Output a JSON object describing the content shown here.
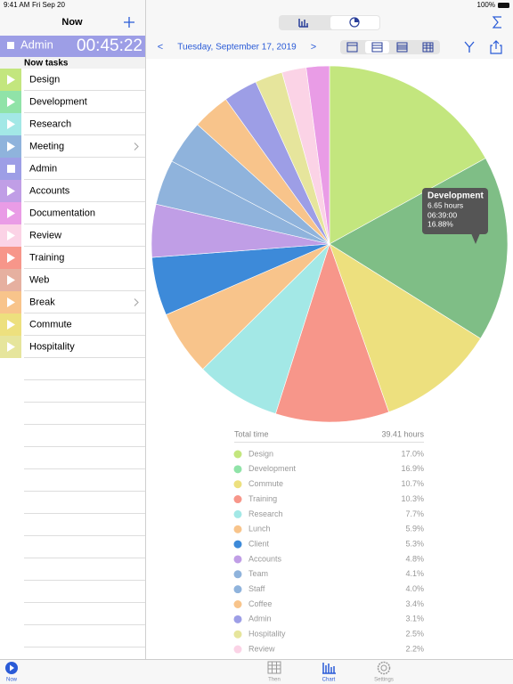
{
  "status_bar": {
    "time": "9:41 AM",
    "date": "Fri Sep 20",
    "battery": "100%"
  },
  "sidebar": {
    "title": "Now",
    "active": {
      "name": "Admin",
      "timer": "00:45:22",
      "color": "#9d9ee6"
    },
    "section": "Now tasks",
    "tasks": [
      {
        "name": "Design",
        "color": "#c3e67e",
        "icon": "play"
      },
      {
        "name": "Development",
        "color": "#90e3a8",
        "icon": "play"
      },
      {
        "name": "Research",
        "color": "#a3e8e6",
        "icon": "play"
      },
      {
        "name": "Meeting",
        "color": "#8fb3dc",
        "icon": "play",
        "has_children": true
      },
      {
        "name": "Admin",
        "color": "#9d9ee6",
        "icon": "stop"
      },
      {
        "name": "Accounts",
        "color": "#c09ee6",
        "icon": "play"
      },
      {
        "name": "Documentation",
        "color": "#e99ce6",
        "icon": "play"
      },
      {
        "name": "Review",
        "color": "#fbd3e6",
        "icon": "play"
      },
      {
        "name": "Training",
        "color": "#f7968a",
        "icon": "play"
      },
      {
        "name": "Web",
        "color": "#e6b0a0",
        "icon": "play"
      },
      {
        "name": "Break",
        "color": "#f8c48b",
        "icon": "play",
        "has_children": true
      },
      {
        "name": "Commute",
        "color": "#ede07e",
        "icon": "play"
      },
      {
        "name": "Hospitality",
        "color": "#e6e59c",
        "icon": "play"
      }
    ]
  },
  "toolbar": {
    "prev": "<",
    "date": "Tuesday, September 17, 2019",
    "next": ">"
  },
  "chart": {
    "type": "pie",
    "categories": [
      "Design",
      "Development",
      "Commute",
      "Training",
      "Research",
      "Lunch",
      "Client",
      "Accounts",
      "Team",
      "Staff",
      "Coffee",
      "Admin",
      "Hospitality",
      "Review",
      null
    ],
    "values": [
      17.0,
      16.9,
      10.7,
      10.3,
      7.7,
      5.9,
      5.3,
      4.8,
      4.1,
      4.0,
      3.4,
      3.1,
      2.5,
      2.2,
      2.1
    ],
    "value_labels": [
      "17.0%",
      "16.9%",
      "10.7%",
      "10.3%",
      "7.7%",
      "5.9%",
      "5.3%",
      "4.8%",
      "4.1%",
      "4.0%",
      "3.4%",
      "3.1%",
      "2.5%",
      "2.2%",
      null
    ],
    "colors": [
      "#c3e67e",
      "#7fbe86",
      "#ede07e",
      "#f7968a",
      "#a3e8e6",
      "#f8c48b",
      "#3d8ad9",
      "#c09ee6",
      "#8fb3dc",
      "#8fb3dc",
      "#f8c48b",
      "#9d9ee6",
      "#e6e59c",
      "#fbd3e6",
      "#e99ce6"
    ],
    "legend_colors": [
      "#c3e67e",
      "#90e3a8",
      "#ede07e",
      "#f7968a",
      "#a3e8e6",
      "#f8c48b",
      "#3d8ad9",
      "#c09ee6",
      "#8fb3dc",
      "#8fb3dc",
      "#f8c48b",
      "#9d9ee6",
      "#e6e59c",
      "#fbd3e6",
      "#e99ce6"
    ],
    "tooltip": {
      "title": "Development",
      "lines": [
        "6.65 hours",
        "06:39:00",
        "16.88%"
      ]
    },
    "total": {
      "label": "Total time",
      "value": "39.41 hours"
    }
  },
  "tab_bar": {
    "tabs": [
      {
        "label": "Now",
        "active": true
      },
      {
        "label": "Then"
      },
      {
        "label": "Chart",
        "active": true
      },
      {
        "label": "Settings"
      }
    ]
  }
}
